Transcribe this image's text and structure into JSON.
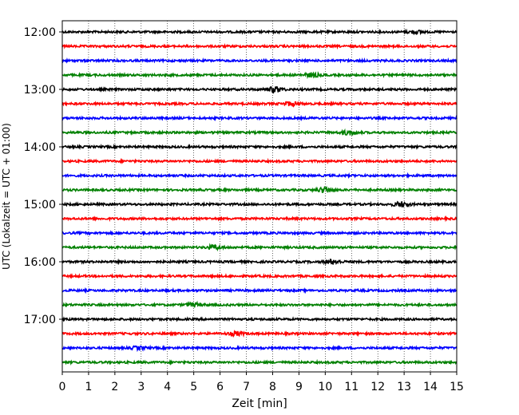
{
  "chart_data": {
    "type": "line",
    "title": "",
    "xlabel": "Zeit  [min]",
    "ylabel": "UTC (Lokalzeit = UTC + 01:00)",
    "xlim": [
      0,
      15
    ],
    "x_ticks": [
      "0",
      "1",
      "2",
      "3",
      "4",
      "5",
      "6",
      "7",
      "8",
      "9",
      "10",
      "11",
      "12",
      "13",
      "14",
      "15"
    ],
    "y_tick_labels": [
      "12:00",
      "13:00",
      "14:00",
      "15:00",
      "16:00",
      "17:00"
    ],
    "grid": "vertical dotted lines at each minute",
    "colors": [
      "#000000",
      "#ff0000",
      "#0000ff",
      "#008000"
    ],
    "traces": [
      {
        "start": "12:00",
        "color": "#000000",
        "events": [
          [
            13.4,
            1.6
          ]
        ]
      },
      {
        "start": "12:15",
        "color": "#ff0000",
        "events": []
      },
      {
        "start": "12:30",
        "color": "#0000ff",
        "events": []
      },
      {
        "start": "12:45",
        "color": "#008000",
        "events": [
          [
            9.5,
            2.2
          ]
        ]
      },
      {
        "start": "13:00",
        "color": "#000000",
        "events": [
          [
            8.1,
            3.0
          ]
        ]
      },
      {
        "start": "13:15",
        "color": "#ff0000",
        "events": [
          [
            8.7,
            2.2
          ]
        ]
      },
      {
        "start": "13:30",
        "color": "#0000ff",
        "events": []
      },
      {
        "start": "13:45",
        "color": "#008000",
        "events": [
          [
            10.9,
            2.6
          ]
        ]
      },
      {
        "start": "14:00",
        "color": "#000000",
        "events": []
      },
      {
        "start": "14:15",
        "color": "#ff0000",
        "events": []
      },
      {
        "start": "14:30",
        "color": "#0000ff",
        "events": []
      },
      {
        "start": "14:45",
        "color": "#008000",
        "events": [
          [
            10.0,
            3.0
          ]
        ]
      },
      {
        "start": "15:00",
        "color": "#000000",
        "events": [
          [
            12.9,
            2.8
          ]
        ]
      },
      {
        "start": "15:15",
        "color": "#ff0000",
        "events": []
      },
      {
        "start": "15:30",
        "color": "#0000ff",
        "events": []
      },
      {
        "start": "15:45",
        "color": "#008000",
        "events": [
          [
            5.8,
            2.2
          ]
        ]
      },
      {
        "start": "16:00",
        "color": "#000000",
        "events": [
          [
            10.3,
            2.4
          ]
        ]
      },
      {
        "start": "16:15",
        "color": "#ff0000",
        "events": []
      },
      {
        "start": "16:30",
        "color": "#0000ff",
        "events": []
      },
      {
        "start": "16:45",
        "color": "#008000",
        "events": [
          [
            5.0,
            2.0
          ]
        ]
      },
      {
        "start": "17:00",
        "color": "#000000",
        "events": []
      },
      {
        "start": "17:15",
        "color": "#ff0000",
        "events": [
          [
            6.6,
            2.2
          ]
        ]
      },
      {
        "start": "17:30",
        "color": "#0000ff",
        "events": [
          [
            2.9,
            1.6
          ]
        ]
      },
      {
        "start": "17:45",
        "color": "#008000",
        "events": []
      }
    ]
  }
}
